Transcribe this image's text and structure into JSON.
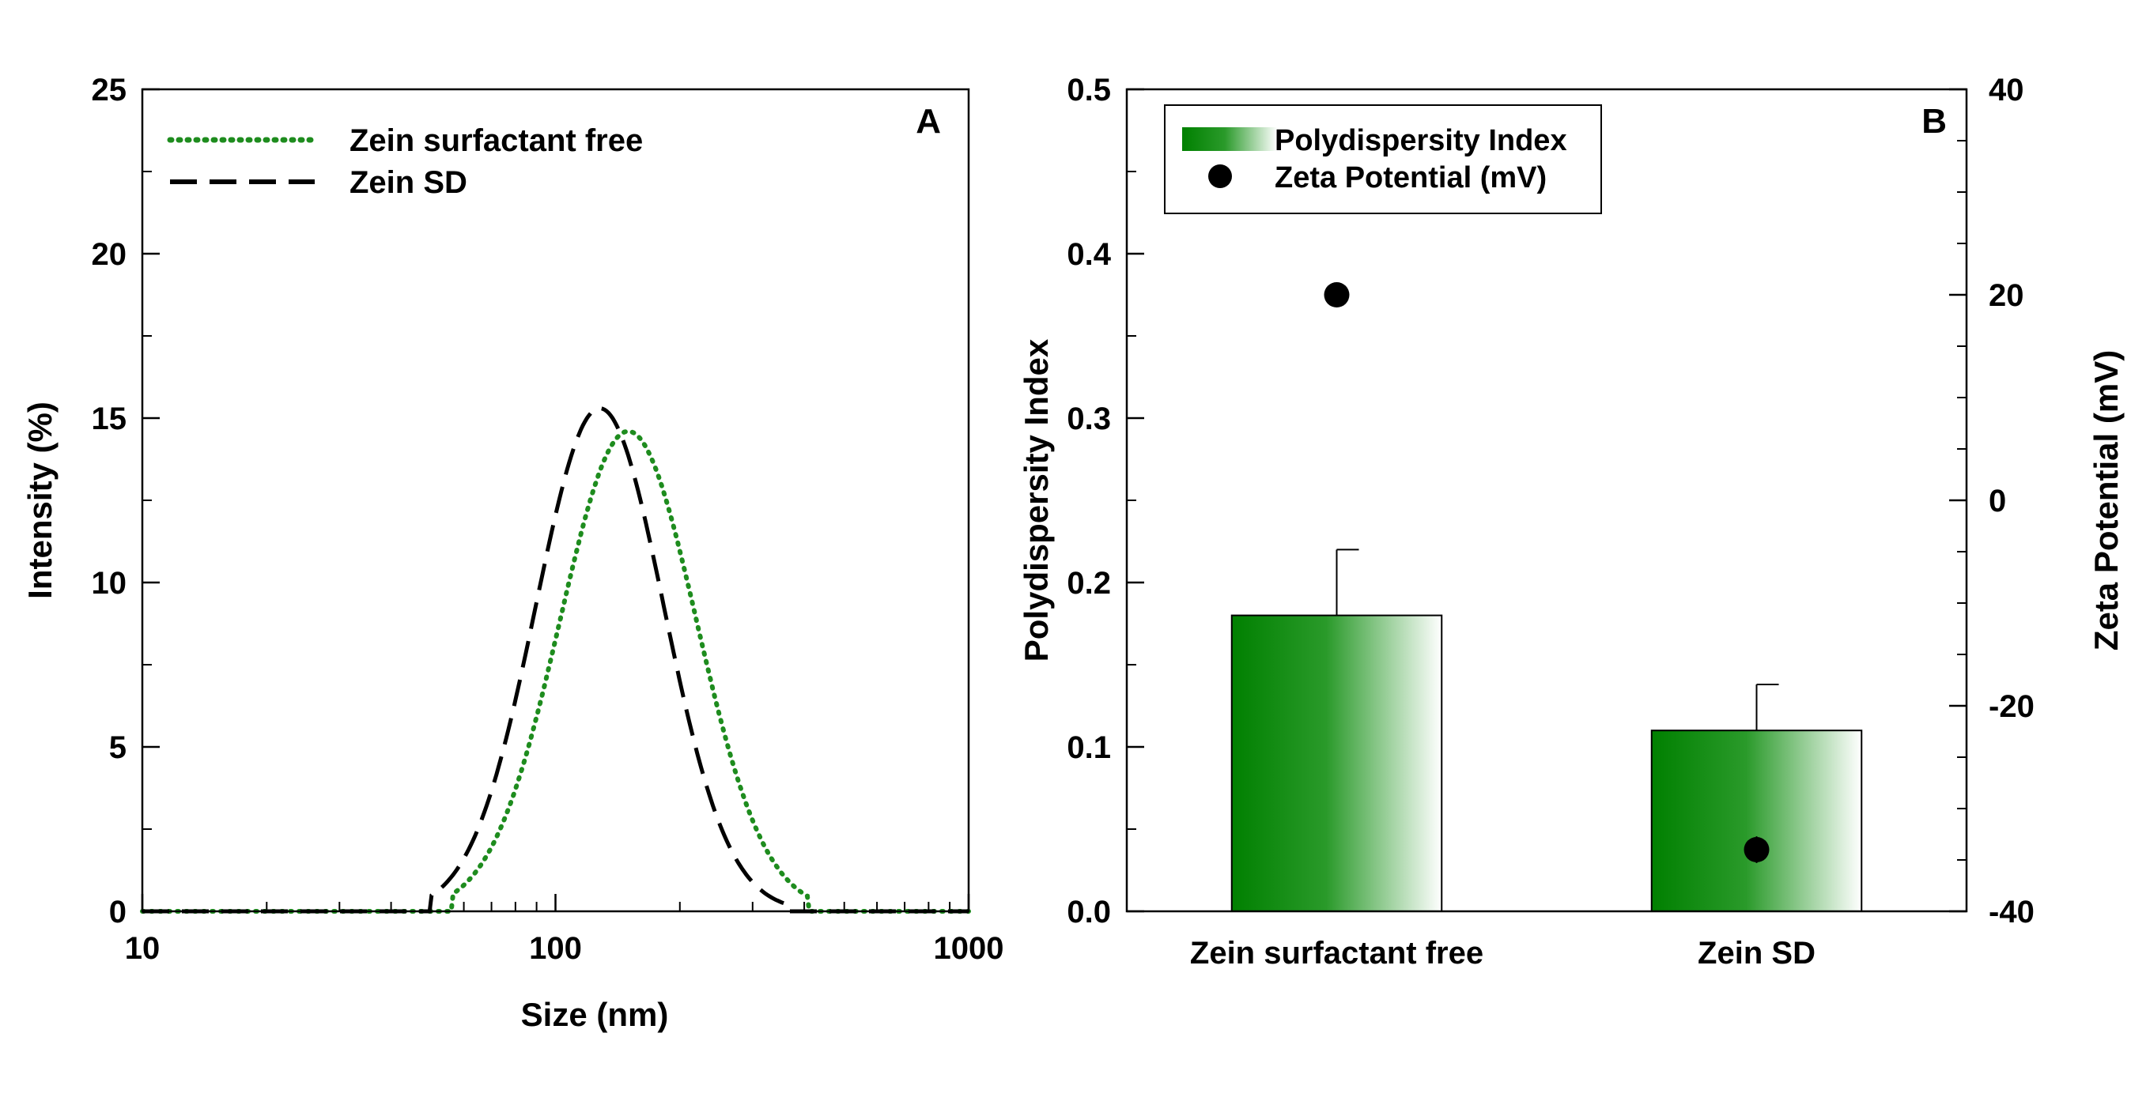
{
  "chart_data": [
    {
      "type": "line",
      "panel_label": "A",
      "xlabel": "Size (nm)",
      "ylabel": "Intensity (%)",
      "xscale": "log",
      "xlim": [
        10,
        1000
      ],
      "ylim": [
        0,
        25
      ],
      "xticks": [
        10,
        100,
        1000
      ],
      "xtick_labels": [
        "10",
        "100",
        "1000"
      ],
      "yticks": [
        0,
        5,
        10,
        15,
        20,
        25
      ],
      "ytick_labels": [
        "0",
        "5",
        "10",
        "15",
        "20",
        "25"
      ],
      "legend_position": "top-left",
      "series": [
        {
          "name": "Zein surfactant free",
          "style": "dotted",
          "color": "#1e8c1e",
          "peak_x": 150,
          "peak_y": 14.6,
          "log_sigma": 0.165,
          "range": [
            56,
            410
          ]
        },
        {
          "name": "Zein SD",
          "style": "dashed",
          "color": "#000000",
          "peak_x": 128,
          "peak_y": 15.3,
          "log_sigma": 0.155,
          "range": [
            50,
            360
          ]
        }
      ]
    },
    {
      "type": "bar",
      "panel_label": "B",
      "categories": [
        "Zein surfactant free",
        "Zein SD"
      ],
      "ylabel": "Polydispersity Index",
      "ylim": [
        0,
        0.5
      ],
      "yticks": [
        0,
        0.1,
        0.2,
        0.3,
        0.4,
        0.5
      ],
      "ytick_labels": [
        "0.0",
        "0.1",
        "0.2",
        "0.3",
        "0.4",
        "0.5"
      ],
      "y2label": "Zeta Potential (mV)",
      "y2lim": [
        -40,
        40
      ],
      "y2ticks": [
        -40,
        -20,
        0,
        20,
        40
      ],
      "y2tick_labels": [
        "-40",
        "-20",
        "0",
        "20",
        "40"
      ],
      "legend_position": "top-left",
      "series": [
        {
          "name": "Polydispersity Index",
          "kind": "bar",
          "values": [
            0.18,
            0.11
          ],
          "errors": [
            0.04,
            0.028
          ],
          "color": "#008000"
        },
        {
          "name": "Zeta Potential (mV)",
          "kind": "point",
          "axis": "right",
          "values": [
            20,
            -34
          ],
          "errors": [
            1.2,
            1.3
          ],
          "color": "#000000"
        }
      ]
    }
  ]
}
